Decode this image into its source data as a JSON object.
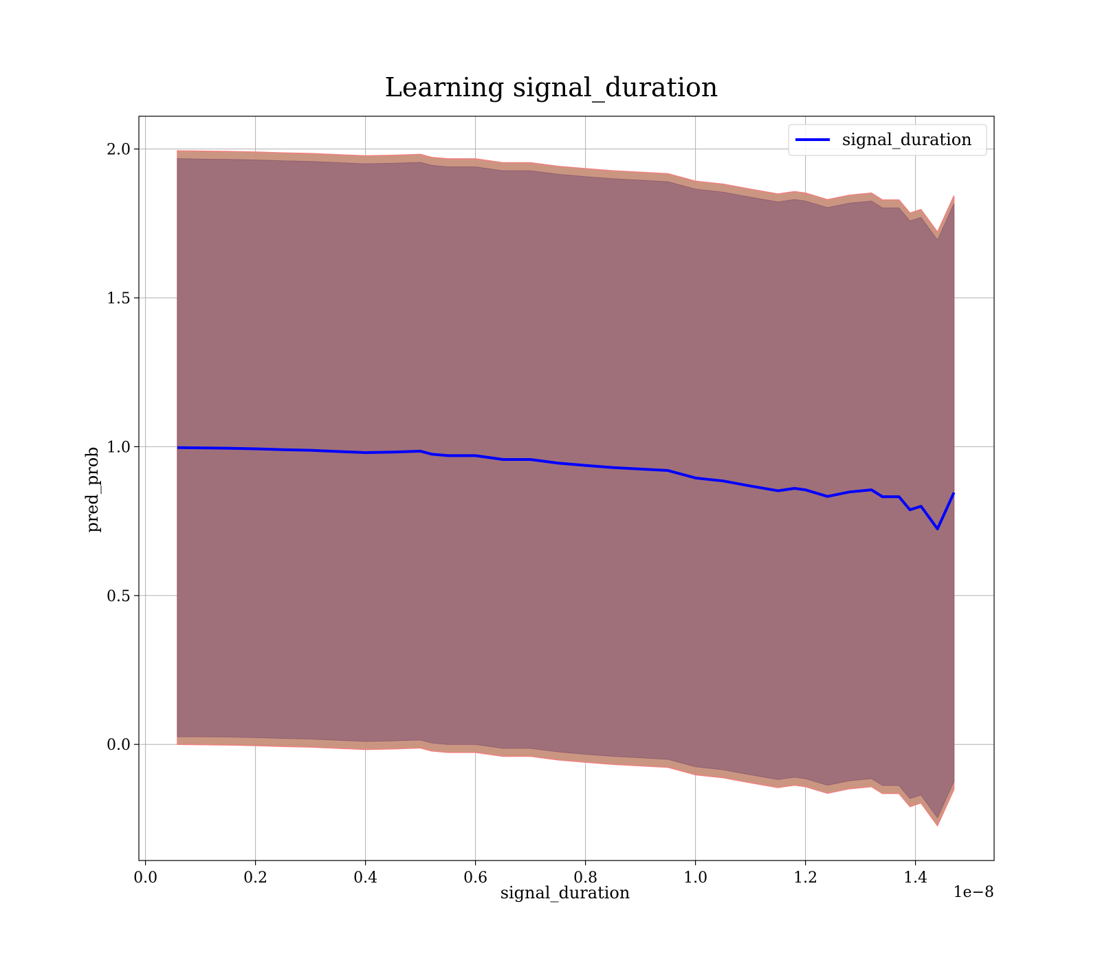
{
  "chart_data": {
    "type": "line",
    "title": "Learning signal_duration",
    "xlabel": "signal_duration",
    "ylabel": "pred_prob",
    "x_offset_text": "1e−8",
    "xlim": [
      -0.012,
      1.543
    ],
    "ylim": [
      -0.39,
      2.11
    ],
    "x_ticks": [
      0.0,
      0.2,
      0.4,
      0.6,
      0.8,
      1.0,
      1.2,
      1.4
    ],
    "x_tick_labels": [
      "0.0",
      "0.2",
      "0.4",
      "0.6",
      "0.8",
      "1.0",
      "1.2",
      "1.4"
    ],
    "y_ticks": [
      0.0,
      0.5,
      1.0,
      1.5,
      2.0
    ],
    "y_tick_labels": [
      "0.0",
      "0.5",
      "1.0",
      "1.5",
      "2.0"
    ],
    "grid": true,
    "legend": {
      "position": "top-right"
    },
    "colors": {
      "line": "#0000ff",
      "inner_band": "#a0707a",
      "outer_band": "#c8907a",
      "outer_edge": "#f08080"
    },
    "series": [
      {
        "name": "signal_duration",
        "x": [
          0.058,
          0.1,
          0.15,
          0.2,
          0.25,
          0.3,
          0.35,
          0.4,
          0.45,
          0.5,
          0.52,
          0.55,
          0.6,
          0.65,
          0.7,
          0.75,
          0.8,
          0.85,
          0.9,
          0.95,
          1.0,
          1.05,
          1.1,
          1.15,
          1.18,
          1.2,
          1.24,
          1.28,
          1.32,
          1.34,
          1.37,
          1.39,
          1.41,
          1.44,
          1.47
        ],
        "y": [
          0.997,
          0.996,
          0.995,
          0.993,
          0.99,
          0.988,
          0.984,
          0.98,
          0.982,
          0.985,
          0.975,
          0.97,
          0.97,
          0.957,
          0.957,
          0.945,
          0.937,
          0.93,
          0.925,
          0.92,
          0.895,
          0.885,
          0.868,
          0.852,
          0.86,
          0.855,
          0.833,
          0.848,
          0.855,
          0.832,
          0.832,
          0.788,
          0.8,
          0.724,
          0.846
        ],
        "inner_band": {
          "upper": [
            1.968,
            1.966,
            1.965,
            1.963,
            1.96,
            1.958,
            1.954,
            1.95,
            1.952,
            1.955,
            1.945,
            1.94,
            1.94,
            1.927,
            1.927,
            1.915,
            1.907,
            1.9,
            1.895,
            1.89,
            1.865,
            1.855,
            1.838,
            1.822,
            1.83,
            1.825,
            1.803,
            1.818,
            1.825,
            1.802,
            1.802,
            1.758,
            1.77,
            1.694,
            1.816
          ],
          "lower": [
            0.026,
            0.026,
            0.025,
            0.023,
            0.02,
            0.018,
            0.014,
            0.01,
            0.012,
            0.015,
            0.005,
            0.0,
            0.0,
            -0.013,
            -0.013,
            -0.025,
            -0.033,
            -0.04,
            -0.045,
            -0.05,
            -0.075,
            -0.085,
            -0.102,
            -0.118,
            -0.11,
            -0.115,
            -0.137,
            -0.122,
            -0.115,
            -0.138,
            -0.138,
            -0.182,
            -0.17,
            -0.246,
            -0.124
          ]
        },
        "outer_band": {
          "upper": [
            1.994,
            1.993,
            1.992,
            1.99,
            1.987,
            1.985,
            1.981,
            1.977,
            1.979,
            1.982,
            1.972,
            1.967,
            1.967,
            1.954,
            1.954,
            1.942,
            1.934,
            1.927,
            1.922,
            1.917,
            1.892,
            1.882,
            1.865,
            1.849,
            1.857,
            1.852,
            1.83,
            1.845,
            1.852,
            1.829,
            1.829,
            1.785,
            1.797,
            1.721,
            1.843
          ],
          "lower": [
            0.0,
            -0.001,
            -0.002,
            -0.004,
            -0.007,
            -0.009,
            -0.013,
            -0.017,
            -0.015,
            -0.012,
            -0.022,
            -0.027,
            -0.027,
            -0.04,
            -0.04,
            -0.052,
            -0.06,
            -0.067,
            -0.072,
            -0.077,
            -0.102,
            -0.112,
            -0.129,
            -0.145,
            -0.137,
            -0.142,
            -0.164,
            -0.149,
            -0.142,
            -0.165,
            -0.165,
            -0.209,
            -0.197,
            -0.273,
            -0.151
          ]
        }
      }
    ]
  }
}
